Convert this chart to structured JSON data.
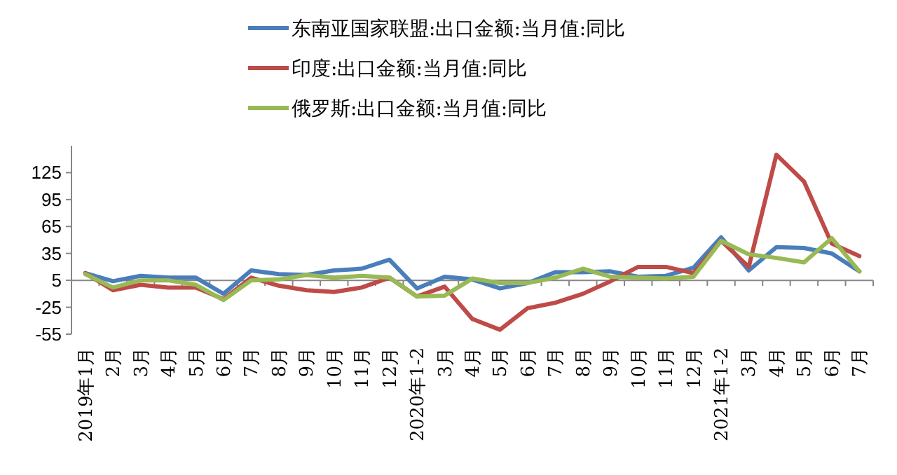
{
  "chart_data": {
    "type": "line",
    "categories": [
      "2019年1月",
      "2月",
      "3月",
      "4月",
      "5月",
      "6月",
      "7月",
      "8月",
      "9月",
      "10月",
      "11月",
      "12月",
      "2020年1-2",
      "3月",
      "4月",
      "5月",
      "6月",
      "7月",
      "8月",
      "9月",
      "10月",
      "11月",
      "12月",
      "2021年1-2",
      "3月",
      "4月",
      "5月",
      "6月",
      "7月"
    ],
    "series": [
      {
        "name": "东南亚国家联盟:出口金额:当月值:同比",
        "color": "#4a7ebb",
        "values": [
          13,
          4,
          10,
          8,
          8,
          -10,
          16,
          12,
          11,
          16,
          18,
          28,
          -4,
          9,
          6,
          -4,
          2,
          14,
          14,
          15,
          9,
          10,
          19,
          53,
          16,
          42,
          41,
          35,
          15
        ]
      },
      {
        "name": "印度:出口金额:当月值:同比",
        "color": "#be4b48",
        "values": [
          13,
          -6,
          0,
          -3,
          -3,
          -16,
          8,
          -1,
          -6,
          -8,
          -3,
          8,
          -13,
          -2,
          -38,
          -50,
          -26,
          -20,
          -10,
          4,
          20,
          20,
          13,
          49,
          20,
          145,
          115,
          46,
          32
        ]
      },
      {
        "name": "俄罗斯:出口金额:当月值:同比",
        "color": "#98b954",
        "values": [
          12,
          -3,
          5,
          5,
          0,
          -17,
          5,
          6,
          11,
          8,
          10,
          8,
          -13,
          -12,
          7,
          2,
          2,
          8,
          18,
          9,
          8,
          7,
          9,
          49,
          34,
          30,
          25,
          52,
          15
        ]
      }
    ],
    "ylim": [
      -55,
      155
    ],
    "yticks": [
      -55,
      -25,
      5,
      35,
      65,
      95,
      125
    ],
    "legend": "top",
    "marker": "none",
    "line_style": "solid"
  }
}
